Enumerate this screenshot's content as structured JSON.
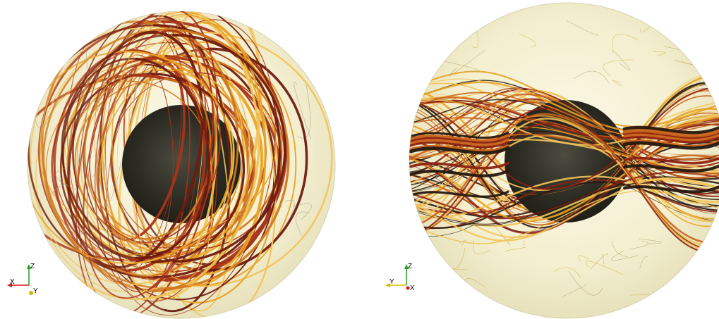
{
  "panels": [
    {
      "id": "left",
      "view": "xz-view",
      "axes": {
        "horizontal": "X",
        "vertical": "Z",
        "depth": "Y"
      },
      "colors": {
        "sphere_fill": "#f6f2d6",
        "core": "#26261d",
        "lines": [
          "#e8a326",
          "#d0781f",
          "#a8341a",
          "#6e1b0f",
          "#f1c35a"
        ]
      }
    },
    {
      "id": "right",
      "view": "yz-view",
      "axes": {
        "horizontal": "Y",
        "vertical": "Z",
        "depth": "X"
      },
      "colors": {
        "sphere_fill": "#f6f2d6",
        "core": "#26261d",
        "lines": [
          "#f1c35a",
          "#e8a326",
          "#c9641c",
          "#8b2212",
          "#2a1a12"
        ]
      }
    }
  ]
}
